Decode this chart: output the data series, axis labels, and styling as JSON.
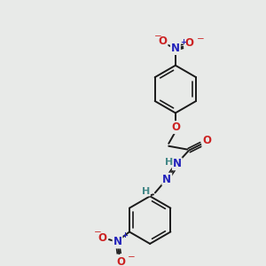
{
  "bg_color": "#e8eae8",
  "bond_color": "#1a1a1a",
  "N_color": "#2222bb",
  "O_color": "#cc2222",
  "H_color": "#448888",
  "figsize": [
    3.0,
    3.0
  ],
  "dpi": 100,
  "xlim": [
    0,
    300
  ],
  "ylim": [
    0,
    300
  ]
}
